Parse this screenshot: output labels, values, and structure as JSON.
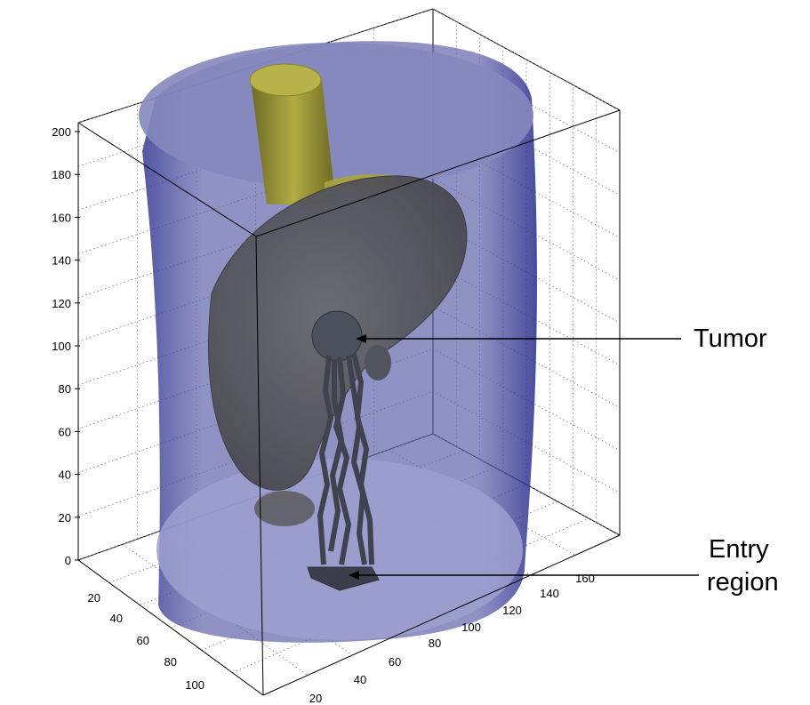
{
  "axes": {
    "z_ticks": [
      "0",
      "20",
      "40",
      "60",
      "80",
      "100",
      "120",
      "140",
      "160",
      "180",
      "200"
    ],
    "left_ticks": [
      "20",
      "40",
      "60",
      "80",
      "100"
    ],
    "right_ticks": [
      "20",
      "40",
      "60",
      "80",
      "100",
      "120",
      "140",
      "160"
    ],
    "grid": true
  },
  "annotations": {
    "tumor": "Tumor",
    "entry_line1": "Entry",
    "entry_line2": "region"
  },
  "colors": {
    "body": "#2f3199",
    "body_cap": "#7e81b8",
    "organ": "#5b5b60",
    "vessel": "#8e8a2c",
    "needle": "#3c3f4a"
  }
}
